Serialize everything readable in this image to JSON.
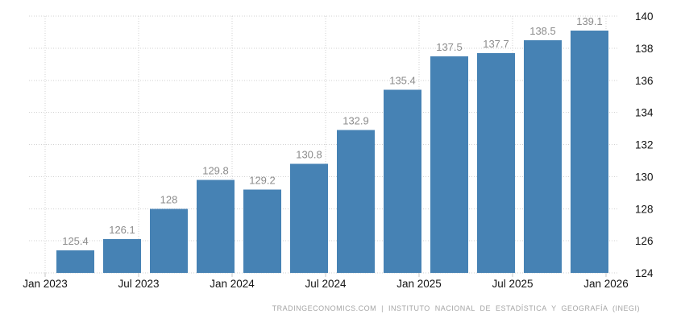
{
  "chart_data": {
    "type": "bar",
    "title": "",
    "xlabel": "",
    "ylabel": "",
    "values": [
      125.4,
      126.1,
      128,
      129.8,
      129.2,
      130.8,
      132.9,
      135.4,
      137.5,
      137.7,
      138.5,
      139.1
    ],
    "bar_value_labels": [
      "125.4",
      "126.1",
      "128",
      "129.8",
      "129.2",
      "130.8",
      "132.9",
      "135.4",
      "137.5",
      "137.7",
      "138.5",
      "139.1"
    ],
    "x_tick_labels": [
      "Jan 2023",
      "Jul 2023",
      "Jan 2024",
      "Jul 2024",
      "Jan 2025",
      "Jul 2025",
      "Jan 2026"
    ],
    "y_tick_labels": [
      "140",
      "138",
      "136",
      "134",
      "132",
      "130",
      "128",
      "126",
      "124"
    ],
    "ylim": [
      124,
      140
    ],
    "y_axis_position": "right",
    "grid": "dotted",
    "legend": "none",
    "bar_color": "#4682b4",
    "grid_color": "#d2d2d2",
    "value_label_color": "#8c8c8c",
    "axis_label_color": "#141414"
  },
  "footer": {
    "text": "TRADINGECONOMICS.COM | INSTITUTO NACIONAL DE ESTADÍSTICA Y GEOGRAFÍA (INEGI)",
    "source": "TRADINGECONOMICS.COM",
    "attribution": "INSTITUTO NACIONAL DE ESTADÍSTICA Y GEOGRAFÍA (INEGI)"
  }
}
